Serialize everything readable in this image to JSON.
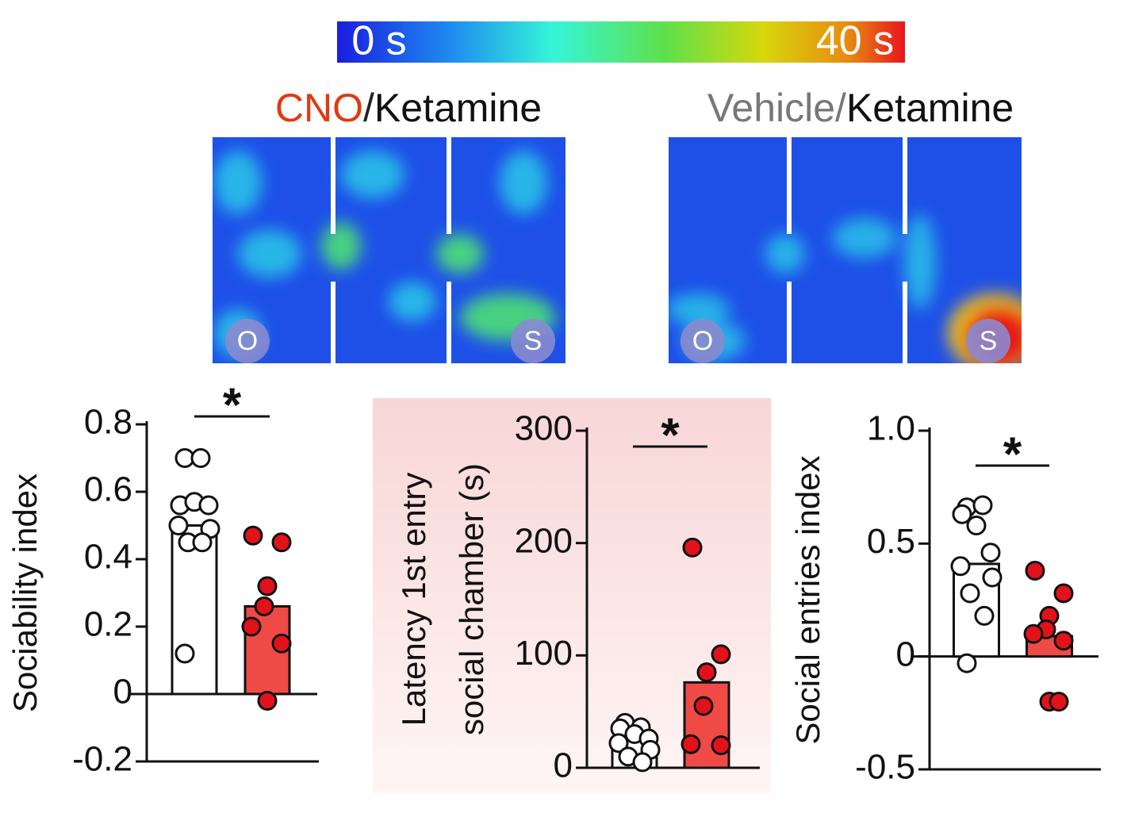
{
  "colorbar": {
    "min_label": "0 s",
    "max_label": "40 s"
  },
  "heatmaps": [
    {
      "title_drug": "CNO",
      "title_sep": "/",
      "title_treatment": "Ketamine",
      "left_label": "O",
      "right_label": "S"
    },
    {
      "title_drug": "Vehicle",
      "title_sep": "/",
      "title_treatment": "Ketamine",
      "left_label": "O",
      "right_label": "S"
    }
  ],
  "chart_data": [
    {
      "type": "bar",
      "ylabel": [
        "Sociability index"
      ],
      "categories": [
        null,
        null
      ],
      "values": [
        0.5,
        0.26
      ],
      "colors": [
        "#ffffff",
        "#f04a46"
      ],
      "point_colors": [
        "#ffffff",
        "#e3121a"
      ],
      "points": [
        [
          0.7,
          0.7,
          0.56,
          0.57,
          0.56,
          0.5,
          0.49,
          0.45,
          0.45,
          0.12
        ],
        [
          0.47,
          0.45,
          0.32,
          0.26,
          0.2,
          0.15,
          -0.02
        ]
      ],
      "significance": "*",
      "ylim": [
        -0.2,
        0.8
      ],
      "yticks": [
        0.8,
        0.6,
        0.4,
        0.2,
        0,
        -0.2
      ]
    },
    {
      "type": "bar",
      "ylabel": [
        "Latency 1st entry",
        "social chamber (s)"
      ],
      "categories": [
        null,
        null
      ],
      "values": [
        25,
        76
      ],
      "colors": [
        "#ffffff",
        "#f04a46"
      ],
      "point_colors": [
        "#ffffff",
        "#e3121a"
      ],
      "points": [
        [
          40,
          36,
          35,
          30,
          26,
          22,
          16,
          10,
          5
        ],
        [
          196,
          101,
          85,
          55,
          21,
          20
        ]
      ],
      "significance": "*",
      "ylim": [
        0,
        300
      ],
      "yticks": [
        300,
        200,
        100,
        0
      ]
    },
    {
      "type": "bar",
      "ylabel": [
        "Social entries index"
      ],
      "categories": [
        null,
        null
      ],
      "values": [
        0.41,
        0.09
      ],
      "colors": [
        "#ffffff",
        "#f04a46"
      ],
      "point_colors": [
        "#ffffff",
        "#e3121a"
      ],
      "points": [
        [
          0.66,
          0.67,
          0.63,
          0.58,
          0.46,
          0.4,
          0.35,
          0.28,
          0.18,
          -0.03
        ],
        [
          0.38,
          0.28,
          0.18,
          0.12,
          0.1,
          0.07,
          -0.2,
          -0.2
        ]
      ],
      "significance": "*",
      "ylim": [
        -0.5,
        1.0
      ],
      "yticks": [
        {
          "value": 1.0,
          "label": "1.0"
        },
        0.5,
        0,
        -0.5
      ]
    }
  ]
}
